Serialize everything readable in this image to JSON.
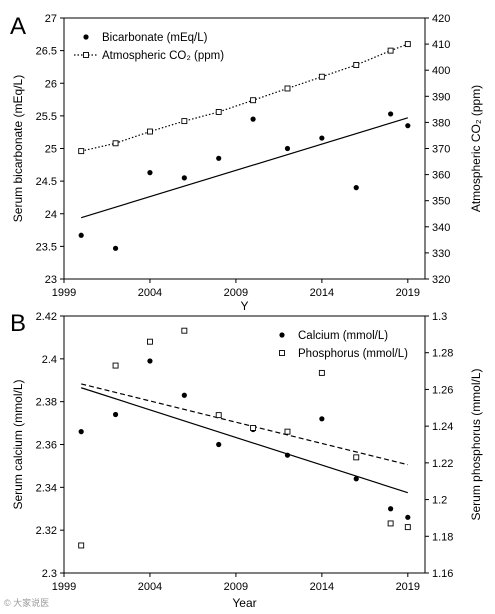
{
  "chart_data": [
    {
      "type": "scatter",
      "panel_label": "A",
      "title": "",
      "xlabel": "",
      "xlabel_partial": "Y",
      "ylabel": "Serum bicarbonate (mEq/L)",
      "y2label": "Atmospheric CO₂ (ppm)",
      "xlim": [
        1999,
        2020
      ],
      "ylim": [
        23,
        27
      ],
      "y2lim": [
        320,
        420
      ],
      "xticks": [
        "1999",
        "2004",
        "2009",
        "2014",
        "2019"
      ],
      "yticks": [
        "23",
        "23.5",
        "24",
        "24.5",
        "25",
        "25.5",
        "26",
        "26.5",
        "27"
      ],
      "y2ticks": [
        "320",
        "330",
        "340",
        "350",
        "360",
        "370",
        "380",
        "390",
        "400",
        "410",
        "420"
      ],
      "legend_position": "top-left",
      "series": [
        {
          "name": "Bicarbonate (mEq/L)",
          "axis": "left",
          "marker": "filled-circle",
          "x": [
            2000,
            2002,
            2004,
            2006,
            2008,
            2010,
            2012,
            2014,
            2016,
            2018,
            2019
          ],
          "y": [
            23.67,
            23.47,
            24.63,
            24.55,
            24.85,
            25.45,
            25.0,
            25.16,
            24.4,
            25.53,
            25.35
          ],
          "trendline": {
            "style": "solid",
            "x": [
              2000,
              2019
            ],
            "y": [
              23.94,
              25.47
            ]
          }
        },
        {
          "name": "Atmospheric CO₂ (ppm)",
          "axis": "right",
          "marker": "open-square",
          "line": "dotted",
          "x": [
            2000,
            2002,
            2004,
            2006,
            2008,
            2010,
            2012,
            2014,
            2016,
            2018,
            2019
          ],
          "y": [
            369,
            372,
            376.5,
            380.5,
            384,
            388.5,
            393,
            397.5,
            402,
            407.5,
            410
          ]
        }
      ]
    },
    {
      "type": "scatter",
      "panel_label": "B",
      "title": "",
      "xlabel": "Year",
      "ylabel": "Serum calcium (mmol/L)",
      "y2label": "Serum phosphorus (mmol/L)",
      "xlim": [
        1999,
        2020
      ],
      "ylim": [
        2.3,
        2.42
      ],
      "y2lim": [
        1.16,
        1.3
      ],
      "xticks": [
        "1999",
        "2004",
        "2009",
        "2014",
        "2019"
      ],
      "yticks": [
        "2.3",
        "2.32",
        "2.34",
        "2.36",
        "2.38",
        "2.4",
        "2.42"
      ],
      "y2ticks": [
        "1.16",
        "1.18",
        "1.2",
        "1.22",
        "1.24",
        "1.26",
        "1.28",
        "1.3"
      ],
      "legend_position": "top-right",
      "series": [
        {
          "name": "Calcium (mmol/L)",
          "axis": "left",
          "marker": "filled-circle",
          "x": [
            2000,
            2002,
            2004,
            2006,
            2008,
            2010,
            2012,
            2014,
            2016,
            2018,
            2019
          ],
          "y": [
            2.366,
            2.374,
            2.399,
            2.383,
            2.36,
            2.367,
            2.355,
            2.372,
            2.344,
            2.33,
            2.326
          ],
          "trendline": {
            "style": "solid",
            "x": [
              2000,
              2019
            ],
            "y": [
              2.3865,
              2.3375
            ]
          }
        },
        {
          "name": "Phosphorus (mmol/L)",
          "axis": "right",
          "marker": "open-square",
          "x": [
            2000,
            2002,
            2004,
            2006,
            2008,
            2010,
            2012,
            2014,
            2016,
            2018,
            2019
          ],
          "y": [
            1.175,
            1.273,
            1.286,
            1.292,
            1.246,
            1.239,
            1.237,
            1.269,
            1.223,
            1.187,
            1.185
          ],
          "trendline": {
            "style": "dashed",
            "x": [
              2000,
              2019
            ],
            "y": [
              1.263,
              1.219
            ]
          }
        }
      ]
    }
  ],
  "watermark": "© 大家说医"
}
